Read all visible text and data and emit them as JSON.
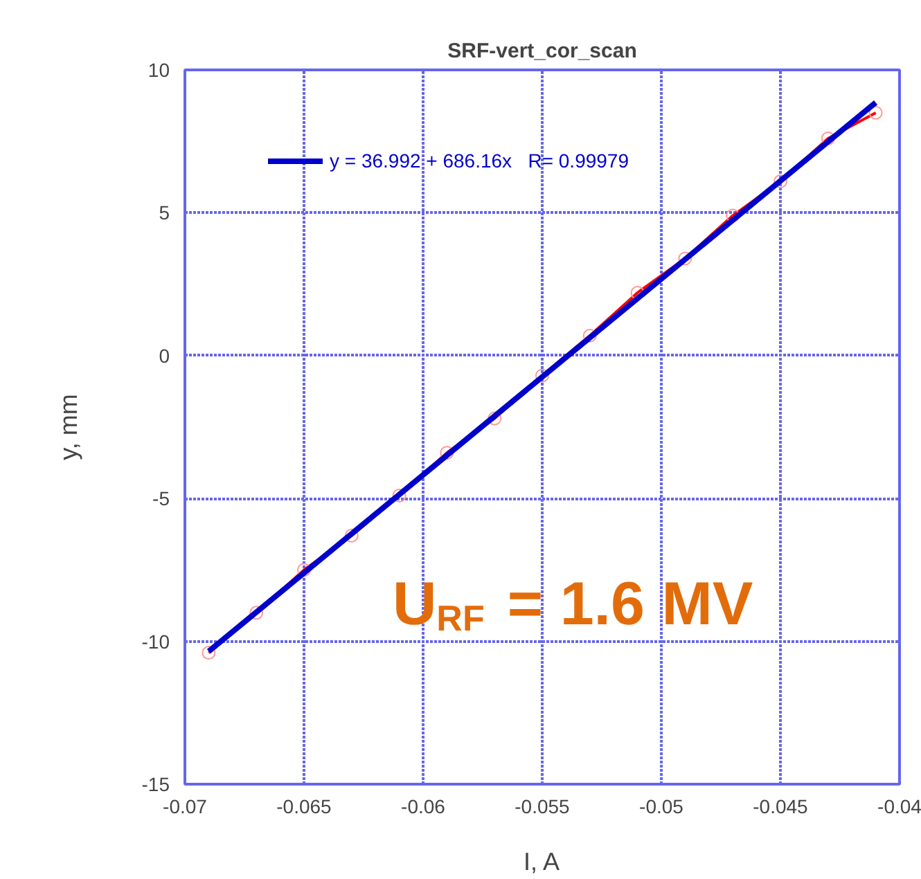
{
  "chart_data": {
    "type": "line",
    "title": "SRF-vert_cor_scan",
    "xlabel": "I, A",
    "ylabel": "y, mm",
    "xlim": [
      -0.07,
      -0.04
    ],
    "xticks": [
      -0.07,
      -0.065,
      -0.06,
      -0.055,
      -0.05,
      -0.045,
      -0.04
    ],
    "ylim": [
      -15,
      10
    ],
    "yticks": [
      -15,
      -10,
      -5,
      0,
      5,
      10
    ],
    "grid": true,
    "legend": "top left",
    "series": [
      {
        "color": "#ff0000",
        "marker": "circle",
        "x": [
          -0.069,
          -0.067,
          -0.065,
          -0.063,
          -0.061,
          -0.059,
          -0.057,
          -0.055,
          -0.053,
          -0.051,
          -0.049,
          -0.047,
          -0.045,
          -0.043,
          -0.041
        ],
        "values": [
          -10.4,
          -9.0,
          -7.5,
          -6.3,
          -4.9,
          -3.4,
          -2.2,
          -0.7,
          0.7,
          2.2,
          3.4,
          4.9,
          6.1,
          7.6,
          8.5
        ]
      },
      {
        "name": "y = 36.992 + 686.16x   R= 0.99979",
        "color": "#0000cc",
        "marker": "none",
        "x": [
          -0.069,
          -0.041
        ],
        "values": [
          -10.35,
          8.86
        ]
      }
    ],
    "annotations": [
      "U$_{RF}$ = 1.6 MV"
    ]
  }
}
